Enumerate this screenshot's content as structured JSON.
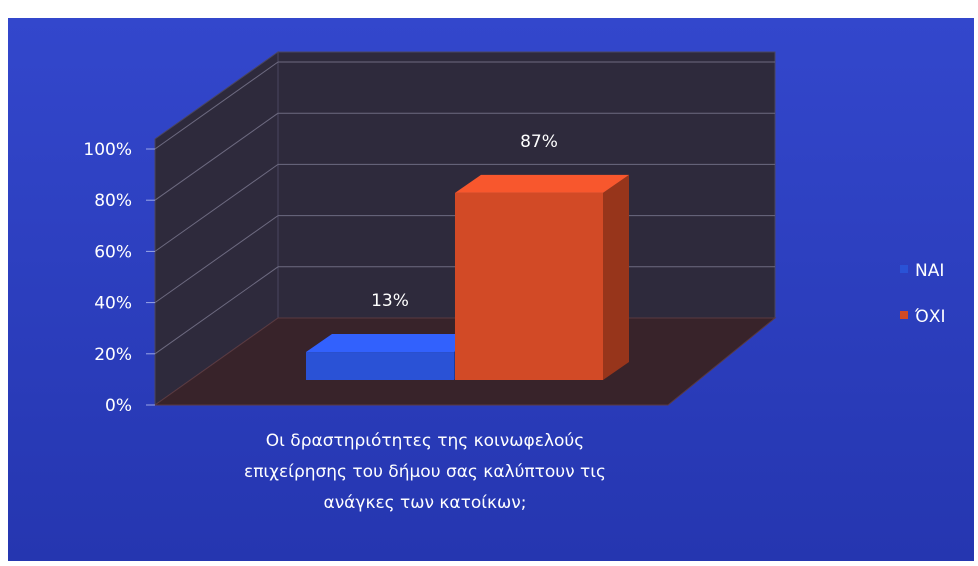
{
  "chart_data": {
    "type": "bar",
    "categories": [
      "Οι δραστηριότητες της κοινωφελούς επιχείρησης του δήμου σας καλύπτουν τις ανάγκες των κατοίκων;"
    ],
    "category_lines": [
      "Οι δραστηριότητες της κοινωφελούς",
      "επιχείρησης του δήμου σας καλύπτουν τις",
      "ανάγκες των κατοίκων;"
    ],
    "series": [
      {
        "name": "ΝΑΙ",
        "values": [
          0.13
        ],
        "data_label": "13%",
        "color": "#2a52d6"
      },
      {
        "name": "ΌΧΙ",
        "values": [
          0.87
        ],
        "data_label": "87%",
        "color": "#d24a26"
      }
    ],
    "yticks": [
      "0%",
      "20%",
      "40%",
      "60%",
      "80%",
      "100%"
    ],
    "ylim": [
      0,
      1
    ],
    "grid": true,
    "style": "3d-clustered-column",
    "legend_position": "right",
    "colors": {
      "background": "#2e43c4",
      "wall": "#2e2a3c",
      "floor": "#38232a",
      "text": "#ffffff"
    }
  }
}
